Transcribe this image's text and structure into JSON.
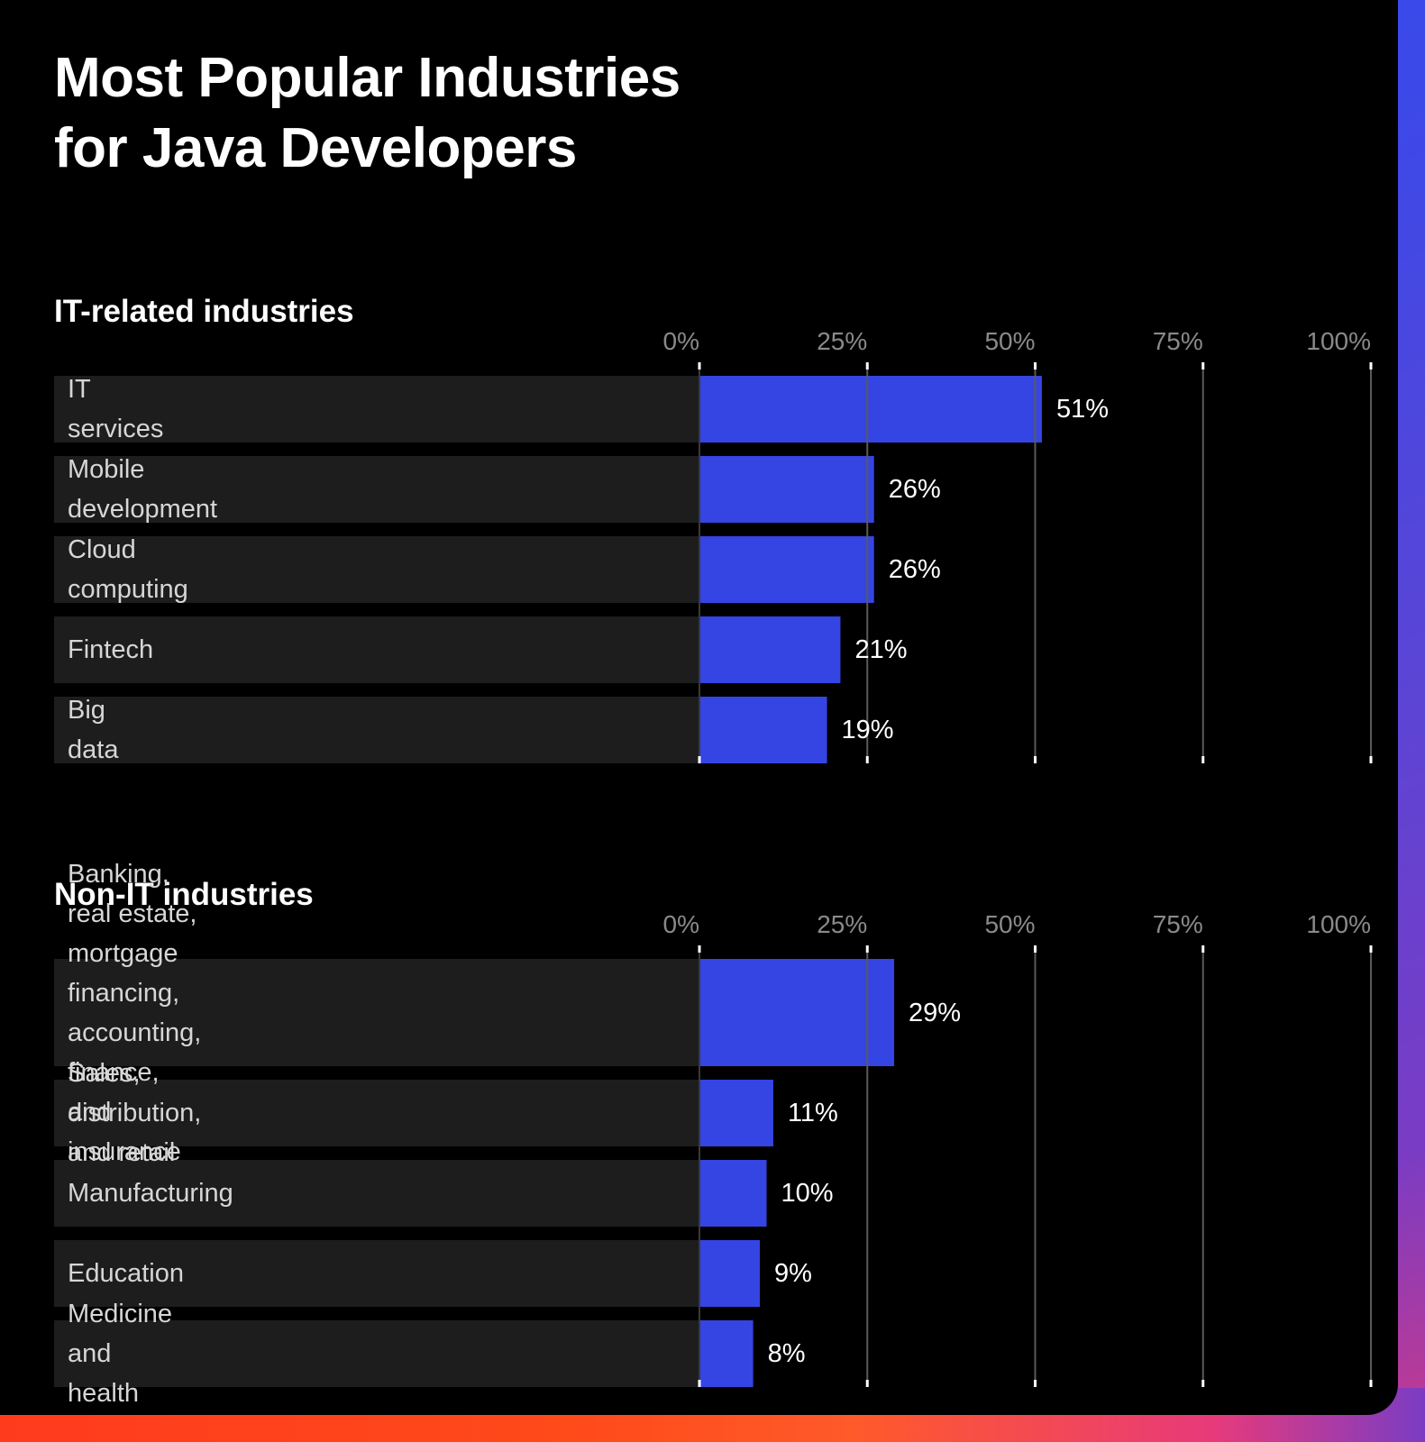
{
  "title_lines": [
    "Most Popular Industries",
    "for Java Developers"
  ],
  "colors": {
    "bar": "#3545e3",
    "row_bg": "#1d1d1d",
    "grid": "#5a5a5a",
    "background": "#000000"
  },
  "chart_data": [
    {
      "type": "bar",
      "orientation": "horizontal",
      "title": "IT-related industries",
      "categories": [
        "IT services",
        "Mobile development",
        "Cloud computing",
        "Fintech",
        "Big data"
      ],
      "values": [
        51,
        26,
        26,
        21,
        19
      ],
      "value_labels": [
        "51%",
        "26%",
        "26%",
        "21%",
        "19%"
      ],
      "xlim": [
        0,
        100
      ],
      "ticks": [
        0,
        25,
        50,
        75,
        100
      ],
      "tick_labels": [
        "0%",
        "25%",
        "50%",
        "75%",
        "100%"
      ],
      "grid": true
    },
    {
      "type": "bar",
      "orientation": "horizontal",
      "title": "Non-IT industries",
      "categories": [
        "Banking, real estate, mortgage financing, accounting, finance, and insurance",
        "Sales, distribution, and retail",
        "Manufacturing",
        "Education",
        "Medicine and health"
      ],
      "category_lines": [
        [
          "Banking, real estate, mortgage financing,",
          "accounting, finance, and insurance"
        ],
        [
          "Sales, distribution, and retail"
        ],
        [
          "Manufacturing"
        ],
        [
          "Education"
        ],
        [
          "Medicine and health"
        ]
      ],
      "values": [
        29,
        11,
        10,
        9,
        8
      ],
      "value_labels": [
        "29%",
        "11%",
        "10%",
        "9%",
        "8%"
      ],
      "xlim": [
        0,
        100
      ],
      "ticks": [
        0,
        25,
        50,
        75,
        100
      ],
      "tick_labels": [
        "0%",
        "25%",
        "50%",
        "75%",
        "100%"
      ],
      "grid": true
    }
  ]
}
